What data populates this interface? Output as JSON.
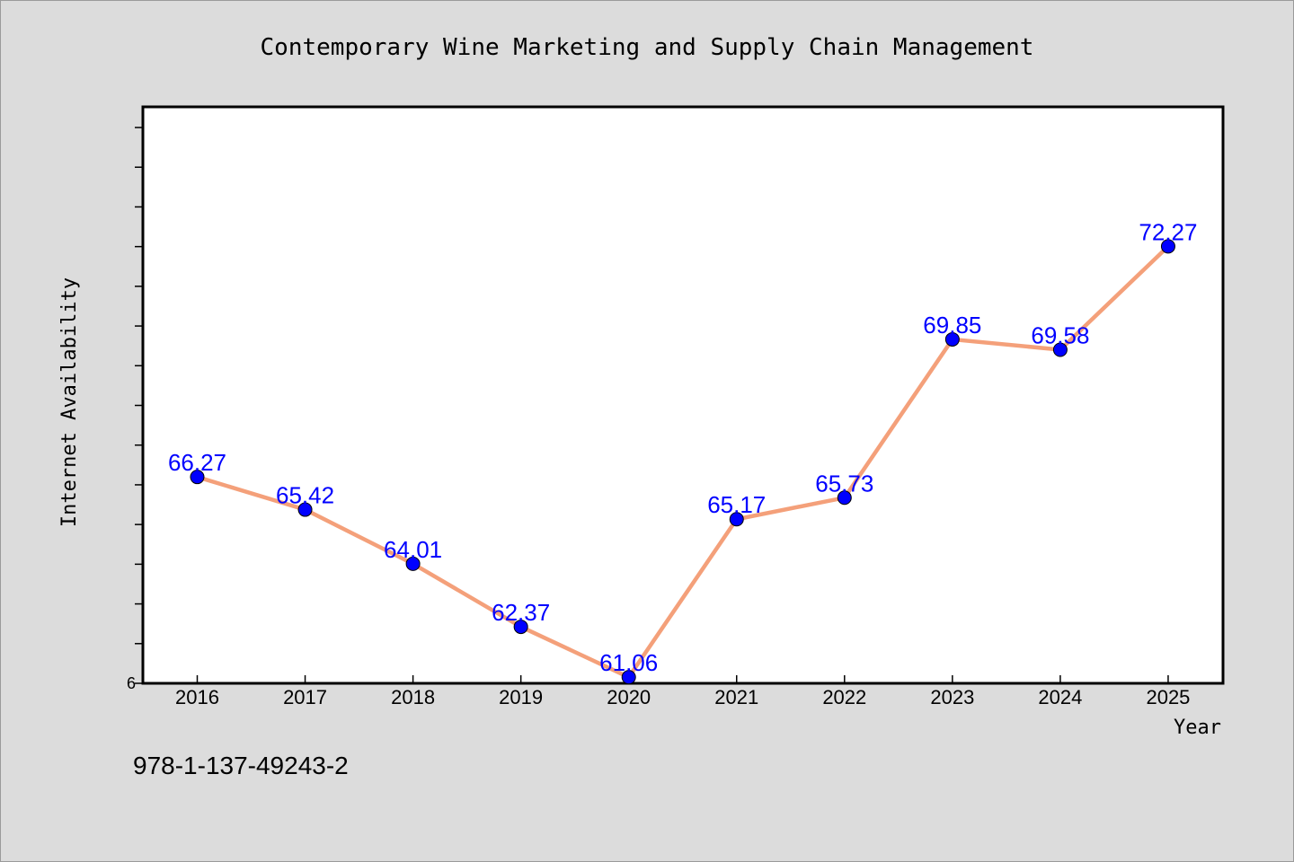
{
  "footer": {
    "isbn": "978-1-137-49243-2"
  },
  "chart_data": {
    "type": "line",
    "title": "Contemporary Wine Marketing and Supply Chain Management",
    "xlabel": "Year",
    "ylabel": "Internet Availability",
    "x": [
      "2016",
      "2017",
      "2018",
      "2019",
      "2020",
      "2021",
      "2022",
      "2023",
      "2024",
      "2025"
    ],
    "series": [
      {
        "values": [
          66.27,
          65.42,
          64.01,
          62.37,
          61.06,
          65.17,
          65.73,
          69.85,
          69.58,
          72.27
        ],
        "labels": [
          "66.27",
          "65.42",
          "64.01",
          "62.37",
          "61.06",
          "65.17",
          "65.73",
          "69.85",
          "69.58",
          "72.27"
        ]
      }
    ],
    "ylim": [
      60.9,
      75.9
    ],
    "y_tick_labels": [
      "6"
    ],
    "y_minor_ticks": 14,
    "grid": false,
    "legend": "none",
    "colors": {
      "line": "#f4a07a",
      "marker": "#0000ff",
      "data_label": "#0000ff",
      "background": "#dcdcdc",
      "plot_background": "#ffffff"
    }
  }
}
